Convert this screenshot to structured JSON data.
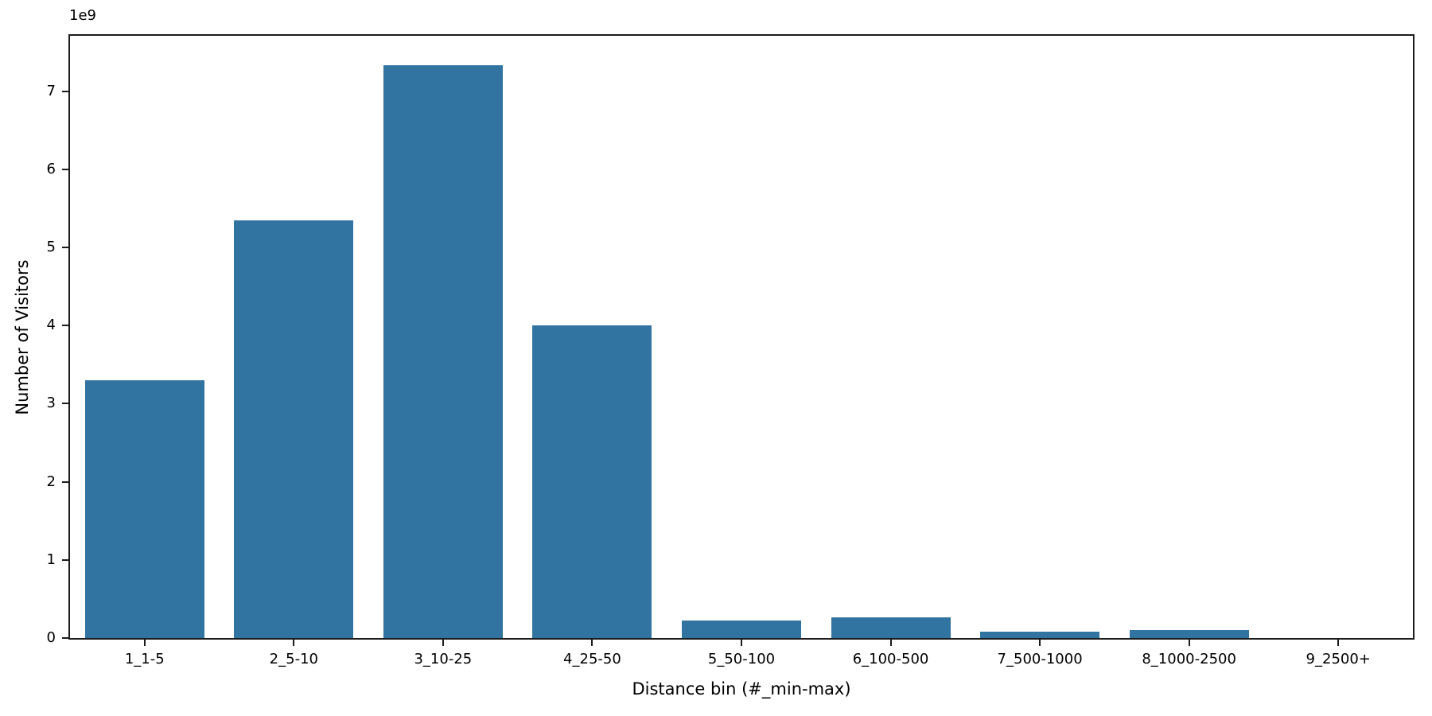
{
  "figure": {
    "background": "#ffffff",
    "bar_color": "#3274a1",
    "spine_color": "#1c1c1c",
    "text_color": "#000000"
  },
  "chart_data": {
    "type": "bar",
    "title": "",
    "xlabel": "Distance bin (#_min-max)",
    "ylabel": "Number of Visitors",
    "y_offset_label": "1e9",
    "categories": [
      "1_1-5",
      "2_5-10",
      "3_10-25",
      "4_25-50",
      "5_50-100",
      "6_100-500",
      "7_500-1000",
      "8_1000-2500",
      "9_2500+"
    ],
    "values": [
      3300000000,
      5350000000,
      7330000000,
      4000000000,
      220000000,
      260000000,
      80000000,
      100000000,
      0
    ],
    "ytick_values": [
      0,
      1000000000,
      2000000000,
      3000000000,
      4000000000,
      5000000000,
      6000000000,
      7000000000
    ],
    "ytick_labels": [
      "0",
      "1",
      "2",
      "3",
      "4",
      "5",
      "6",
      "7"
    ],
    "ylim": [
      0,
      7710000000
    ],
    "bar_width_fraction": 0.8,
    "grid": false,
    "legend": null
  }
}
